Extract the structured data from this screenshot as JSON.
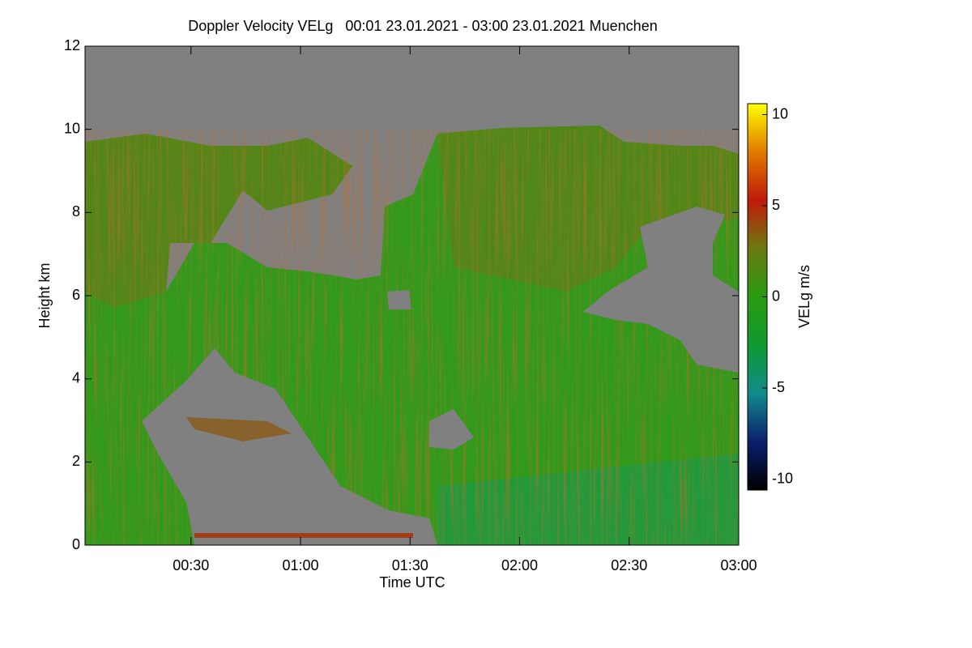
{
  "chart_data": {
    "type": "heatmap",
    "title": "Doppler Velocity VELg   00:01 23.01.2021 - 03:00 23.01.2021 Muenchen",
    "x_label": "Time UTC",
    "y_label": "Height km",
    "xlim": [
      1,
      180
    ],
    "xticks": [
      {
        "value": 30,
        "label": "00:30"
      },
      {
        "value": 60,
        "label": "01:00"
      },
      {
        "value": 90,
        "label": "01:30"
      },
      {
        "value": 120,
        "label": "02:00"
      },
      {
        "value": 150,
        "label": "02:30"
      },
      {
        "value": 180,
        "label": "03:00"
      }
    ],
    "ylim": [
      0,
      12
    ],
    "yticks": [
      0,
      2,
      4,
      6,
      8,
      10,
      12
    ],
    "colorbar": {
      "label": "VELg m/s",
      "lim": [
        -10.6,
        10.6
      ],
      "ticks": [
        -10,
        -5,
        0,
        5,
        10
      ],
      "colors": [
        "#000000",
        "#0a1f6e",
        "#128a8a",
        "#0f9a30",
        "#2a9a10",
        "#6a7a10",
        "#c01a0a",
        "#e07a00",
        "#ffff00"
      ]
    },
    "no_data_color": "#808080"
  }
}
